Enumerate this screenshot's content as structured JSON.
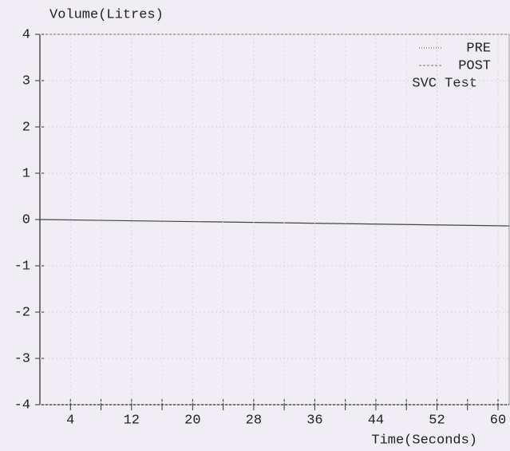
{
  "chart_data": {
    "type": "line",
    "y_label": "Volume(Litres)",
    "x_label": "Time(Seconds)",
    "annotation": "SVC Test",
    "x": [],
    "series": [
      {
        "name": "PRE",
        "color": "#555555",
        "values": []
      },
      {
        "name": "POST",
        "color": "#777777",
        "values": []
      }
    ],
    "xlim": [
      0,
      60
    ],
    "xticks": [
      4,
      12,
      20,
      28,
      36,
      44,
      52,
      60
    ],
    "xminorticks": [
      8,
      16,
      24,
      32,
      40,
      48,
      56
    ],
    "ylim": [
      -4,
      4
    ],
    "yticks": [
      -4,
      -3,
      -2,
      -1,
      0,
      1,
      2,
      3,
      4
    ],
    "grid": true,
    "legend": "upper right"
  }
}
